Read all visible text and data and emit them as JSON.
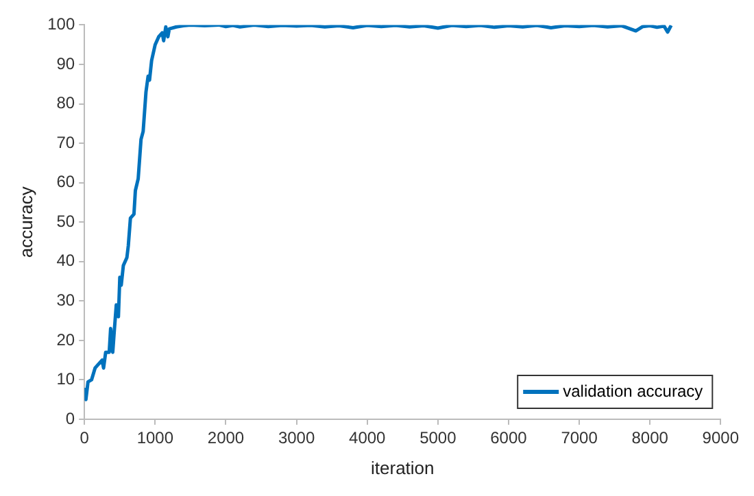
{
  "chart_data": {
    "type": "line",
    "xlabel": "iteration",
    "ylabel": "accuracy",
    "xlim": [
      0,
      9000
    ],
    "xticks": [
      0,
      1000,
      2000,
      3000,
      4000,
      5000,
      6000,
      7000,
      8000,
      9000
    ],
    "ylim": [
      0,
      100
    ],
    "yticks": [
      0,
      10,
      20,
      30,
      40,
      50,
      60,
      70,
      80,
      90,
      100
    ],
    "grid": false,
    "legend": "bottom right",
    "marker": "none",
    "line_style": "solid",
    "series": [
      {
        "name": "validation accuracy",
        "color": "#0072bd",
        "x": [
          0,
          20,
          50,
          100,
          150,
          200,
          250,
          270,
          300,
          350,
          370,
          400,
          420,
          450,
          480,
          500,
          520,
          550,
          600,
          620,
          650,
          700,
          720,
          760,
          800,
          830,
          870,
          900,
          920,
          950,
          1000,
          1050,
          1100,
          1120,
          1150,
          1180,
          1200,
          1300,
          1400,
          1500,
          1700,
          1900,
          2000,
          2100,
          2200,
          2400,
          2600,
          2800,
          3000,
          3200,
          3400,
          3600,
          3800,
          4000,
          4200,
          4400,
          4600,
          4800,
          5000,
          5200,
          5400,
          5600,
          5800,
          6000,
          6200,
          6400,
          6600,
          6800,
          7000,
          7200,
          7400,
          7600,
          7800,
          7900,
          8000,
          8100,
          8200,
          8250,
          8300
        ],
        "values": [
          8,
          5,
          9.5,
          10,
          13,
          14,
          15,
          13,
          17,
          17,
          23,
          17,
          22,
          29,
          26,
          36,
          34,
          39,
          41,
          44,
          51,
          52,
          58,
          61,
          71,
          73,
          83,
          87,
          86,
          91,
          95,
          97,
          98,
          96,
          99.5,
          97,
          99,
          99.5,
          99.8,
          100,
          99.8,
          100,
          99.6,
          99.9,
          99.5,
          100,
          99.6,
          99.9,
          99.7,
          99.9,
          99.5,
          99.8,
          99.3,
          99.9,
          99.6,
          99.9,
          99.5,
          99.8,
          99.2,
          99.9,
          99.6,
          99.9,
          99.4,
          99.8,
          99.5,
          99.9,
          99.3,
          99.8,
          99.6,
          99.9,
          99.5,
          99.8,
          98.5,
          99.6,
          99.8,
          99.4,
          99.7,
          98.2,
          99.9
        ]
      }
    ]
  }
}
